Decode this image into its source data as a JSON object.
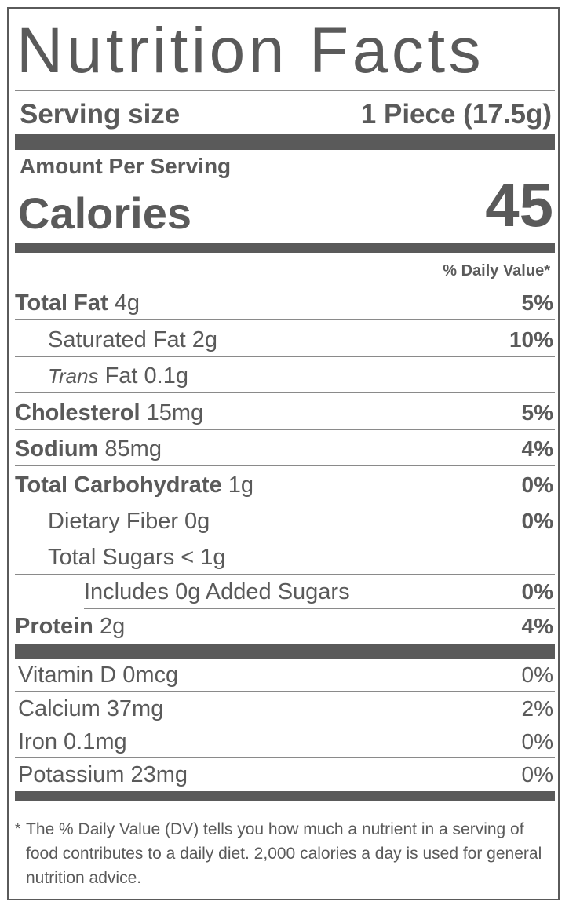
{
  "title": "Nutrition Facts",
  "serving": {
    "label": "Serving size",
    "value": "1 Piece (17.5g)"
  },
  "amount_per_serving": "Amount Per Serving",
  "calories": {
    "label": "Calories",
    "value": "45"
  },
  "dv_header": "% Daily Value*",
  "nutrients": [
    {
      "bold": "Total Fat",
      "rest": " 4g",
      "pct": "5%"
    },
    {
      "rest": "Saturated Fat 2g",
      "pct": "10%"
    },
    {
      "italic": "Trans",
      "rest": " Fat 0.1g",
      "pct": ""
    },
    {
      "bold": "Cholesterol",
      "rest": " 15mg",
      "pct": "5%"
    },
    {
      "bold": "Sodium",
      "rest": " 85mg",
      "pct": "4%"
    },
    {
      "bold": "Total Carbohydrate",
      "rest": " 1g",
      "pct": "0%"
    },
    {
      "rest": "Dietary Fiber 0g",
      "pct": "0%"
    },
    {
      "rest": "Total Sugars < 1g",
      "pct": ""
    },
    {
      "rest": "Includes 0g Added Sugars",
      "pct": "0%"
    },
    {
      "bold": "Protein",
      "rest": " 2g",
      "pct": "4%"
    }
  ],
  "vitamins": [
    {
      "name": "Vitamin D 0mcg",
      "pct": "0%"
    },
    {
      "name": "Calcium 37mg",
      "pct": "2%"
    },
    {
      "name": "Iron 0.1mg",
      "pct": "0%"
    },
    {
      "name": "Potassium 23mg",
      "pct": "0%"
    }
  ],
  "footnote": {
    "star": "*",
    "text": "The % Daily Value (DV) tells you how much a nutrient in a serving of food contributes to a daily diet. 2,000 calories a day is used for general nutrition advice."
  }
}
